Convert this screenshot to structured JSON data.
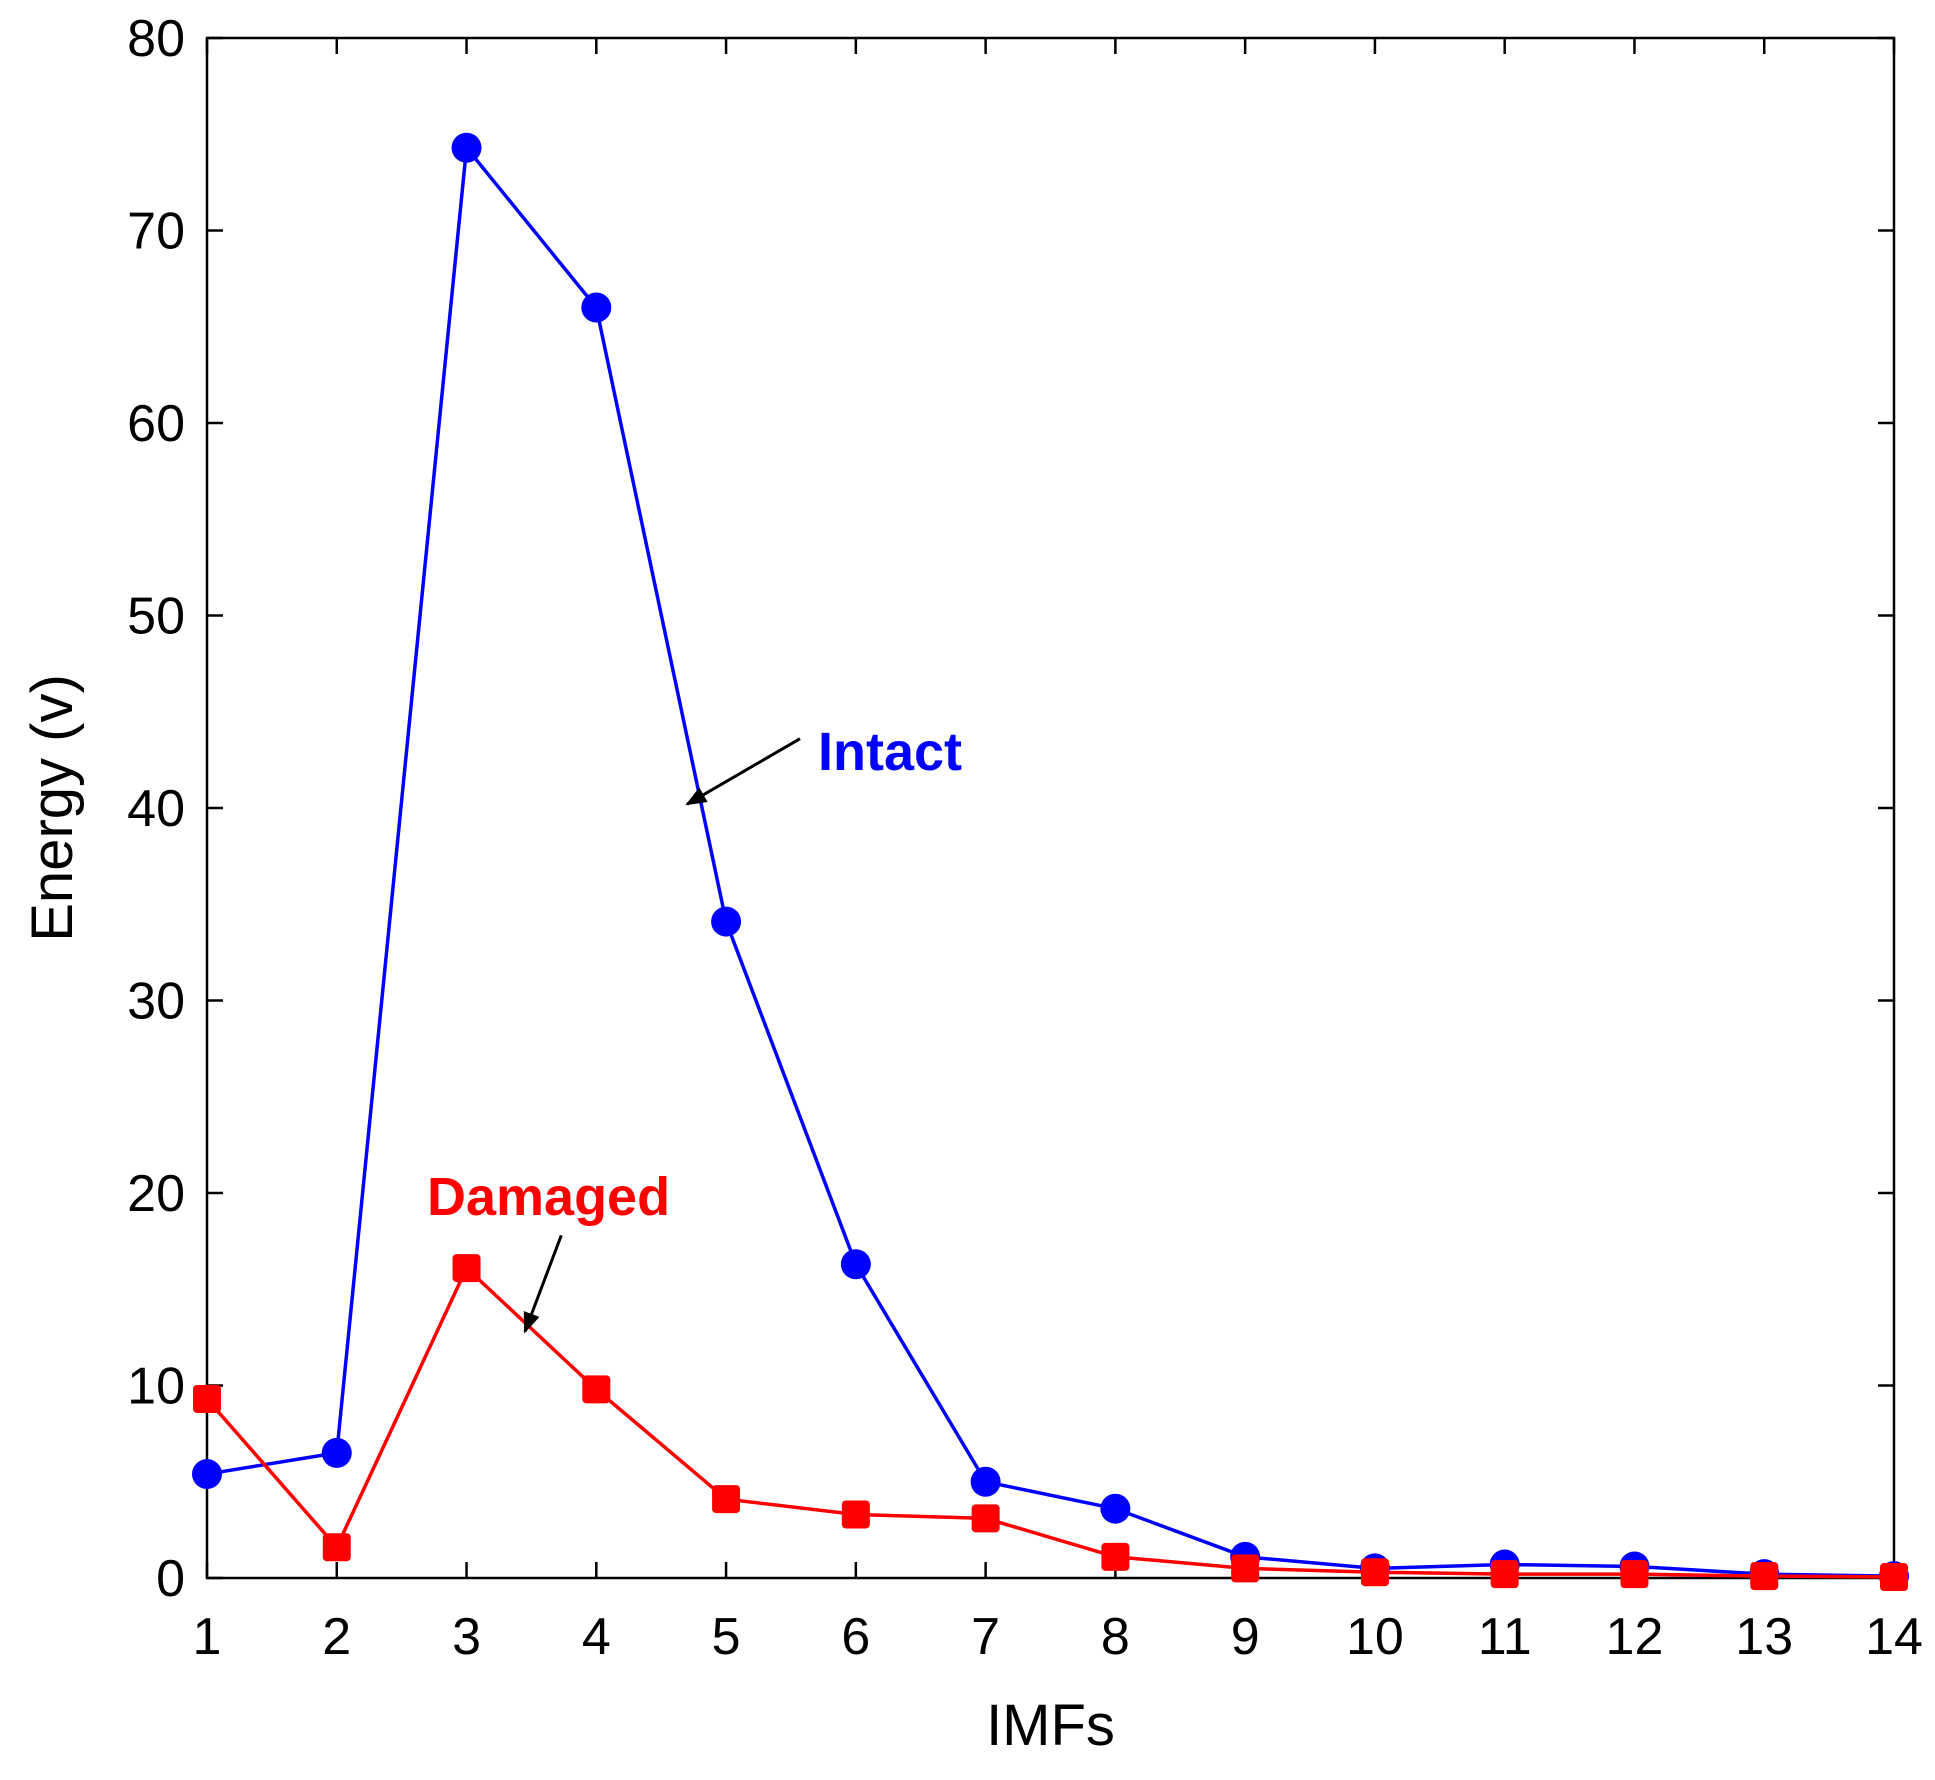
{
  "chart_data": {
    "type": "line",
    "title": "",
    "xlabel": "IMFs",
    "ylabel": "Energy (v)",
    "xlim": [
      1,
      14
    ],
    "ylim": [
      0,
      80
    ],
    "x": [
      1,
      2,
      3,
      4,
      5,
      6,
      7,
      8,
      9,
      10,
      11,
      12,
      13,
      14
    ],
    "x_ticks": [
      1,
      2,
      3,
      4,
      5,
      6,
      7,
      8,
      9,
      10,
      11,
      12,
      13,
      14
    ],
    "y_ticks": [
      0,
      10,
      20,
      30,
      40,
      50,
      60,
      70,
      80
    ],
    "grid": false,
    "series": [
      {
        "name": "Intact",
        "color": "#0000ff",
        "marker": "circle",
        "values": [
          5.4,
          6.5,
          74.3,
          66.0,
          34.1,
          16.3,
          5.0,
          3.6,
          1.1,
          0.5,
          0.7,
          0.6,
          0.2,
          0.1
        ]
      },
      {
        "name": "Damaged",
        "color": "#ff0000",
        "marker": "square",
        "values": [
          9.3,
          1.6,
          16.1,
          9.8,
          4.1,
          3.3,
          3.1,
          1.1,
          0.5,
          0.3,
          0.2,
          0.2,
          0.1,
          0.05
        ]
      }
    ],
    "annotations": [
      {
        "text": "Intact",
        "color": "#0000ff",
        "arrow_to": {
          "x": 4.7,
          "y": 40.2
        },
        "arrow_from": {
          "x": 5.57,
          "y": 43.6
        }
      },
      {
        "text": "Damaged",
        "color": "#ff0000",
        "arrow_to": {
          "x": 3.45,
          "y": 12.8
        },
        "arrow_from": {
          "x": 3.73,
          "y": 17.8
        }
      }
    ]
  }
}
